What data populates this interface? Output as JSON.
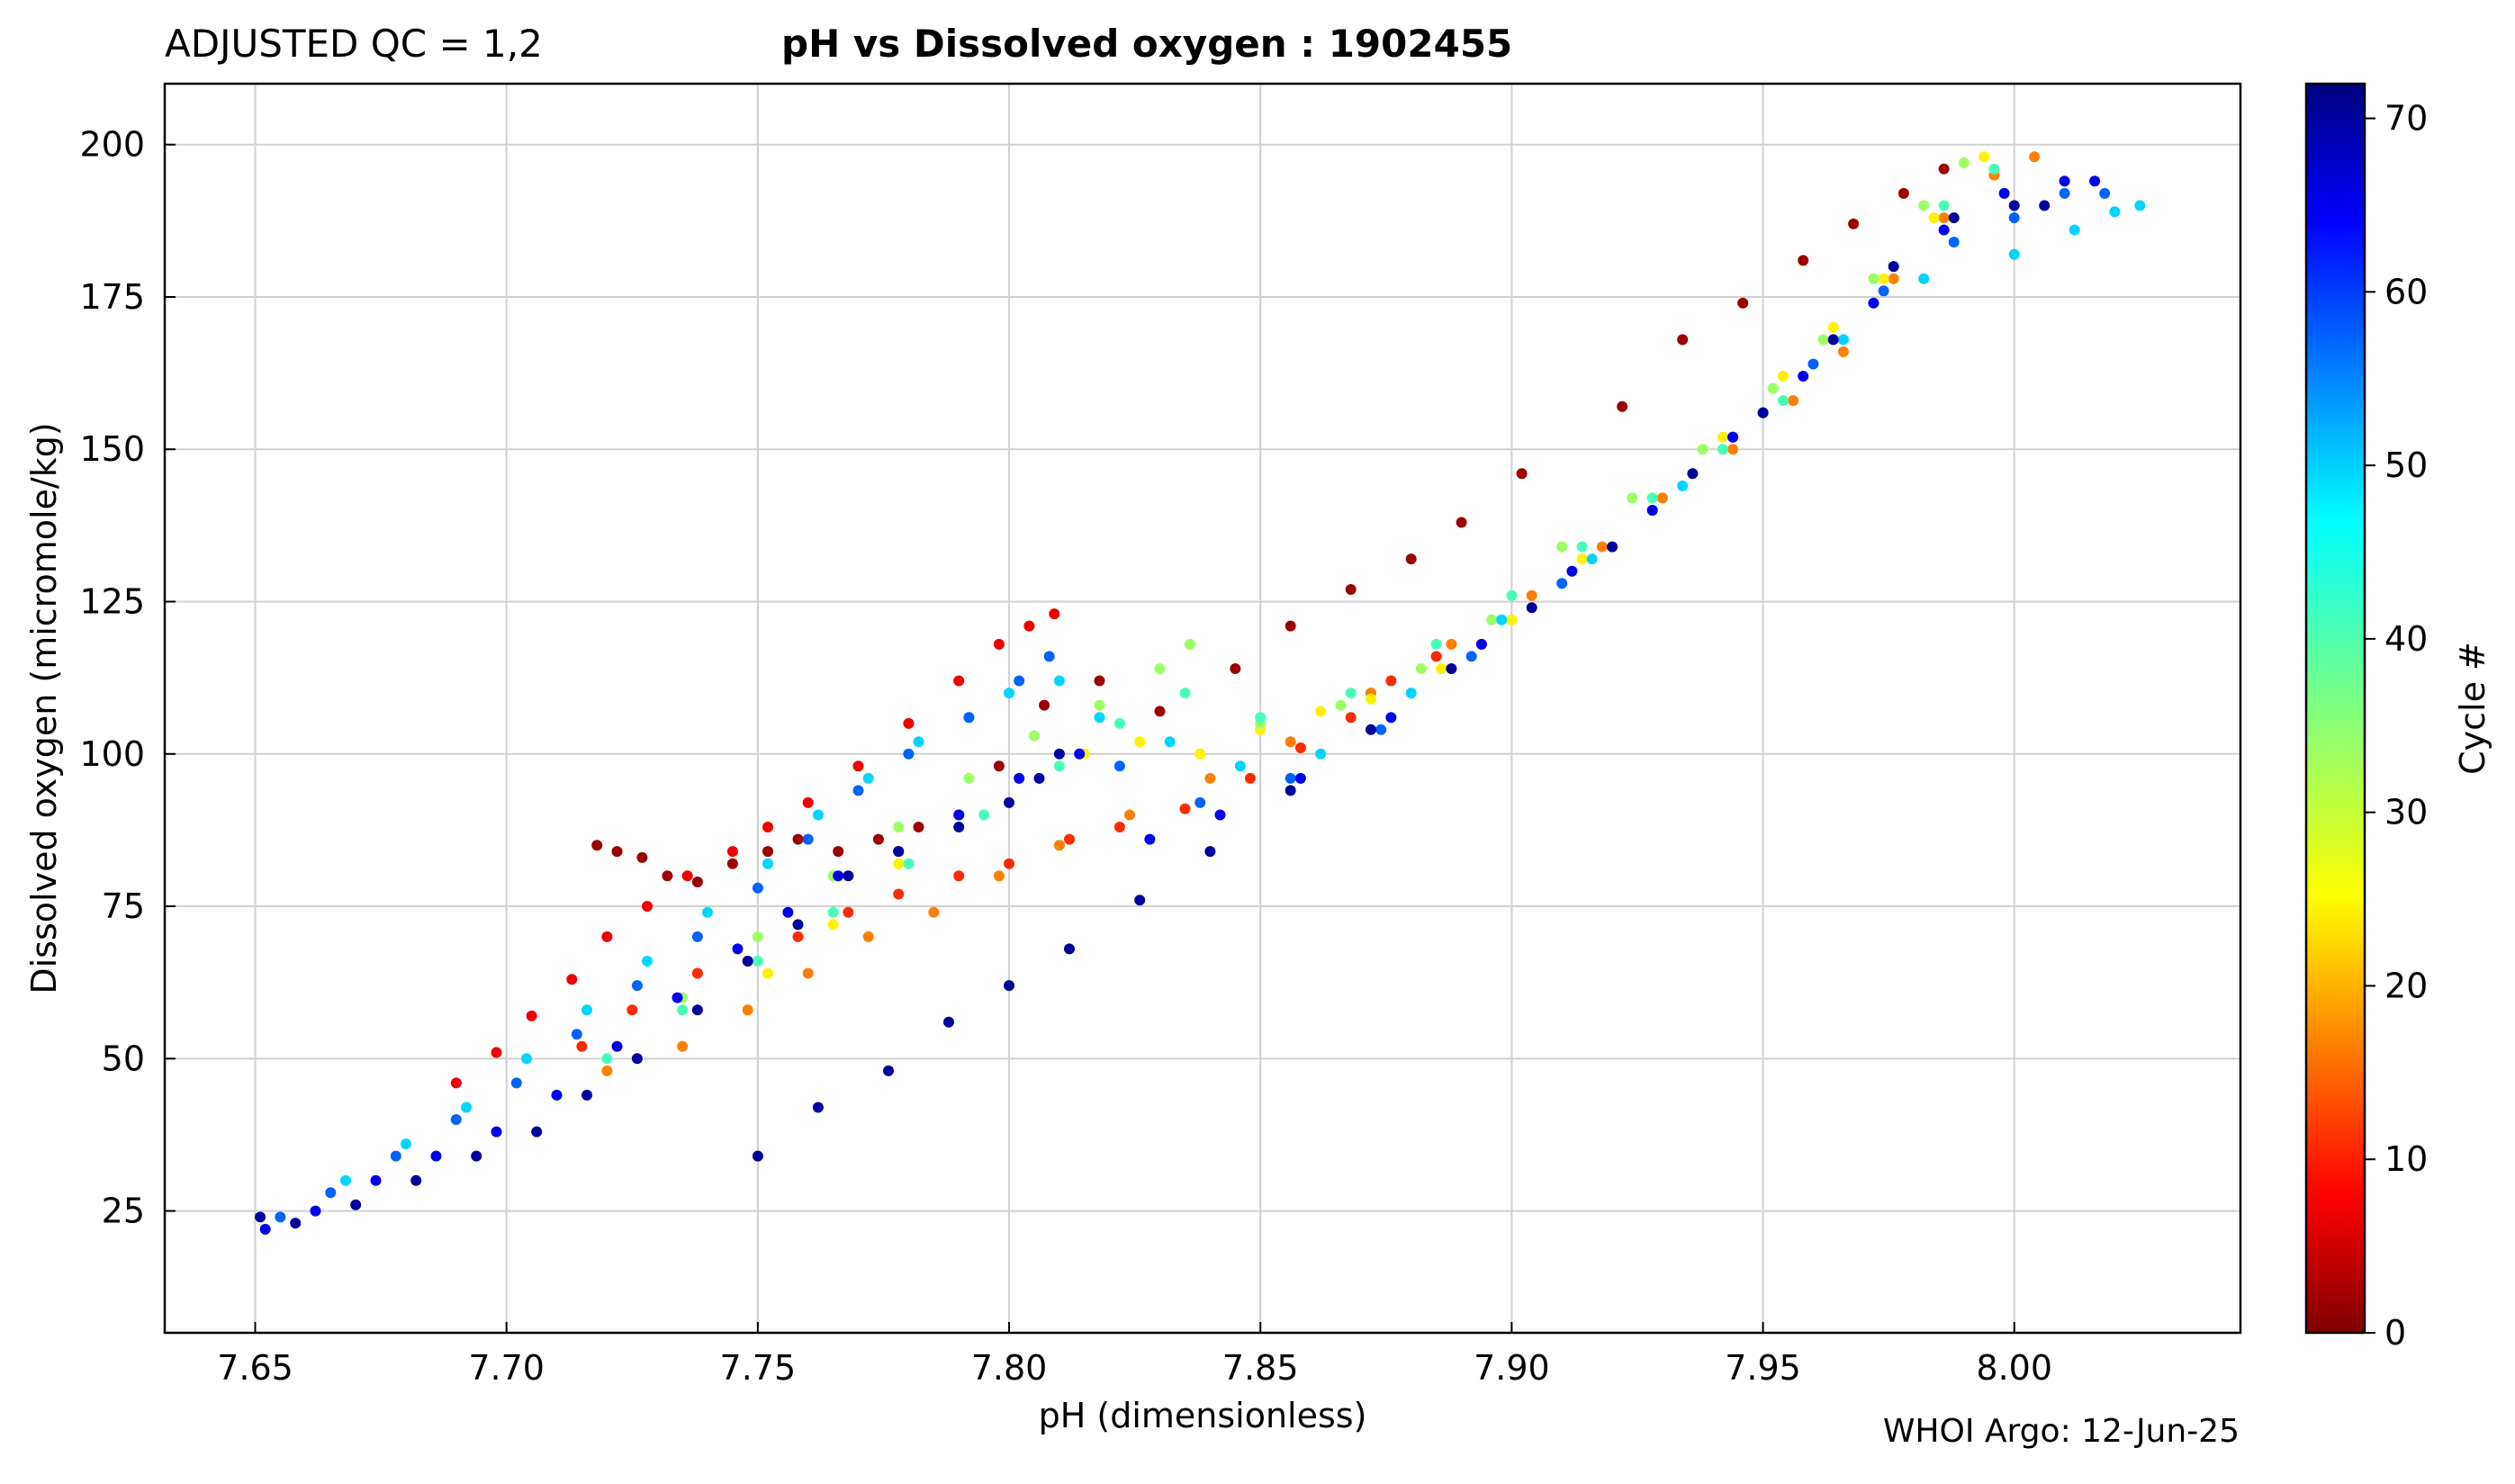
{
  "header": {
    "qc_label": "ADJUSTED QC = 1,2",
    "title": "pH vs Dissolved oxygen : 1902455"
  },
  "footer": {
    "credit": "WHOI Argo: 12-Jun-25"
  },
  "chart_data": {
    "type": "scatter",
    "title": "pH vs Dissolved oxygen : 1902455",
    "xlabel": "pH  (dimensionless)",
    "ylabel": "Dissolved oxygen  (micromole/kg)",
    "xlim": [
      7.632,
      8.045
    ],
    "ylim": [
      5,
      210
    ],
    "xticks": [
      7.65,
      7.7,
      7.75,
      7.8,
      7.85,
      7.9,
      7.95,
      8.0
    ],
    "xtick_labels": [
      "7.65",
      "7.70",
      "7.75",
      "7.80",
      "7.85",
      "7.90",
      "7.95",
      "8.00"
    ],
    "yticks": [
      25,
      50,
      75,
      100,
      125,
      150,
      175,
      200
    ],
    "ytick_labels": [
      "25",
      "50",
      "75",
      "100",
      "125",
      "150",
      "175",
      "200"
    ],
    "grid": true,
    "colorbar": {
      "label": "Cycle #",
      "colormap": "jet_reversed",
      "range": [
        0,
        72
      ],
      "ticks": [
        0,
        10,
        20,
        30,
        40,
        50,
        60,
        70
      ],
      "tick_labels": [
        "0",
        "10",
        "20",
        "30",
        "40",
        "50",
        "60",
        "70"
      ]
    },
    "color_by": "cycle",
    "series": [
      {
        "cycle": 2,
        "points": [
          [
            7.718,
            85
          ],
          [
            7.722,
            84
          ],
          [
            7.727,
            83
          ],
          [
            7.732,
            80
          ],
          [
            7.738,
            79
          ],
          [
            7.745,
            82
          ],
          [
            7.752,
            84
          ],
          [
            7.758,
            86
          ],
          [
            7.766,
            84
          ],
          [
            7.774,
            86
          ],
          [
            7.782,
            88
          ],
          [
            7.79,
            90
          ],
          [
            7.798,
            98
          ],
          [
            7.807,
            108
          ],
          [
            7.818,
            112
          ],
          [
            7.83,
            107
          ],
          [
            7.845,
            114
          ],
          [
            7.856,
            121
          ],
          [
            7.868,
            127
          ],
          [
            7.88,
            132
          ],
          [
            7.89,
            138
          ],
          [
            7.902,
            146
          ],
          [
            7.922,
            157
          ],
          [
            7.934,
            168
          ],
          [
            7.946,
            174
          ],
          [
            7.958,
            181
          ],
          [
            7.968,
            187
          ],
          [
            7.978,
            192
          ],
          [
            7.986,
            196
          ]
        ]
      },
      {
        "cycle": 8,
        "points": [
          [
            7.69,
            46
          ],
          [
            7.698,
            51
          ],
          [
            7.705,
            57
          ],
          [
            7.713,
            63
          ],
          [
            7.72,
            70
          ],
          [
            7.728,
            75
          ],
          [
            7.736,
            80
          ],
          [
            7.745,
            84
          ],
          [
            7.752,
            88
          ],
          [
            7.76,
            92
          ],
          [
            7.77,
            98
          ],
          [
            7.78,
            105
          ],
          [
            7.79,
            112
          ],
          [
            7.798,
            118
          ],
          [
            7.804,
            121
          ],
          [
            7.809,
            123
          ]
        ]
      },
      {
        "cycle": 12,
        "points": [
          [
            7.715,
            52
          ],
          [
            7.725,
            58
          ],
          [
            7.738,
            64
          ],
          [
            7.748,
            66
          ],
          [
            7.758,
            70
          ],
          [
            7.768,
            74
          ],
          [
            7.778,
            77
          ],
          [
            7.79,
            80
          ],
          [
            7.8,
            82
          ],
          [
            7.812,
            86
          ],
          [
            7.822,
            88
          ],
          [
            7.835,
            91
          ],
          [
            7.848,
            96
          ],
          [
            7.858,
            101
          ],
          [
            7.868,
            106
          ],
          [
            7.876,
            112
          ],
          [
            7.885,
            116
          ],
          [
            7.894,
            118
          ]
        ]
      },
      {
        "cycle": 18,
        "points": [
          [
            7.72,
            48
          ],
          [
            7.735,
            52
          ],
          [
            7.748,
            58
          ],
          [
            7.76,
            64
          ],
          [
            7.772,
            70
          ],
          [
            7.785,
            74
          ],
          [
            7.798,
            80
          ],
          [
            7.81,
            85
          ],
          [
            7.824,
            90
          ],
          [
            7.84,
            96
          ],
          [
            7.856,
            102
          ],
          [
            7.872,
            110
          ],
          [
            7.888,
            118
          ],
          [
            7.904,
            126
          ],
          [
            7.918,
            134
          ],
          [
            7.93,
            142
          ],
          [
            7.944,
            150
          ],
          [
            7.956,
            158
          ],
          [
            7.966,
            166
          ],
          [
            7.976,
            178
          ],
          [
            7.986,
            188
          ],
          [
            7.996,
            195
          ],
          [
            8.004,
            198
          ]
        ]
      },
      {
        "cycle": 26,
        "points": [
          [
            7.752,
            64
          ],
          [
            7.765,
            72
          ],
          [
            7.778,
            82
          ],
          [
            7.79,
            90
          ],
          [
            7.802,
            96
          ],
          [
            7.815,
            100
          ],
          [
            7.826,
            102
          ],
          [
            7.838,
            100
          ],
          [
            7.85,
            104
          ],
          [
            7.862,
            107
          ],
          [
            7.872,
            109
          ],
          [
            7.886,
            114
          ],
          [
            7.9,
            122
          ],
          [
            7.914,
            132
          ],
          [
            7.928,
            142
          ],
          [
            7.942,
            152
          ],
          [
            7.954,
            162
          ],
          [
            7.964,
            170
          ],
          [
            7.974,
            178
          ],
          [
            7.984,
            188
          ],
          [
            7.994,
            198
          ]
        ]
      },
      {
        "cycle": 34,
        "points": [
          [
            7.735,
            60
          ],
          [
            7.75,
            70
          ],
          [
            7.765,
            80
          ],
          [
            7.778,
            88
          ],
          [
            7.792,
            96
          ],
          [
            7.805,
            103
          ],
          [
            7.818,
            108
          ],
          [
            7.83,
            114
          ],
          [
            7.836,
            118
          ],
          [
            7.85,
            105
          ],
          [
            7.866,
            108
          ],
          [
            7.882,
            114
          ],
          [
            7.896,
            122
          ],
          [
            7.91,
            134
          ],
          [
            7.924,
            142
          ],
          [
            7.938,
            150
          ],
          [
            7.952,
            160
          ],
          [
            7.962,
            168
          ],
          [
            7.972,
            178
          ],
          [
            7.982,
            190
          ],
          [
            7.99,
            197
          ]
        ]
      },
      {
        "cycle": 40,
        "points": [
          [
            7.72,
            50
          ],
          [
            7.735,
            58
          ],
          [
            7.75,
            66
          ],
          [
            7.765,
            74
          ],
          [
            7.78,
            82
          ],
          [
            7.795,
            90
          ],
          [
            7.81,
            98
          ],
          [
            7.822,
            105
          ],
          [
            7.835,
            110
          ],
          [
            7.85,
            106
          ],
          [
            7.868,
            110
          ],
          [
            7.885,
            118
          ],
          [
            7.9,
            126
          ],
          [
            7.914,
            134
          ],
          [
            7.928,
            142
          ],
          [
            7.942,
            150
          ],
          [
            7.954,
            158
          ],
          [
            7.966,
            168
          ],
          [
            7.976,
            180
          ],
          [
            7.986,
            190
          ],
          [
            7.996,
            196
          ]
        ]
      },
      {
        "cycle": 48,
        "points": [
          [
            7.668,
            30
          ],
          [
            7.68,
            36
          ],
          [
            7.692,
            42
          ],
          [
            7.704,
            50
          ],
          [
            7.716,
            58
          ],
          [
            7.728,
            66
          ],
          [
            7.74,
            74
          ],
          [
            7.752,
            82
          ],
          [
            7.762,
            90
          ],
          [
            7.772,
            96
          ],
          [
            7.782,
            102
          ],
          [
            7.792,
            106
          ],
          [
            7.8,
            110
          ],
          [
            7.81,
            112
          ],
          [
            7.818,
            106
          ],
          [
            7.832,
            102
          ],
          [
            7.846,
            98
          ],
          [
            7.862,
            100
          ],
          [
            7.88,
            110
          ],
          [
            7.898,
            122
          ],
          [
            7.916,
            132
          ],
          [
            7.934,
            144
          ],
          [
            7.95,
            156
          ],
          [
            7.966,
            168
          ],
          [
            7.982,
            178
          ],
          [
            8.0,
            182
          ],
          [
            8.012,
            186
          ],
          [
            8.02,
            189
          ],
          [
            8.025,
            190
          ]
        ]
      },
      {
        "cycle": 56,
        "points": [
          [
            7.655,
            24
          ],
          [
            7.665,
            28
          ],
          [
            7.678,
            34
          ],
          [
            7.69,
            40
          ],
          [
            7.702,
            46
          ],
          [
            7.714,
            54
          ],
          [
            7.726,
            62
          ],
          [
            7.738,
            70
          ],
          [
            7.75,
            78
          ],
          [
            7.76,
            86
          ],
          [
            7.77,
            94
          ],
          [
            7.78,
            100
          ],
          [
            7.792,
            106
          ],
          [
            7.802,
            112
          ],
          [
            7.808,
            116
          ],
          [
            7.822,
            98
          ],
          [
            7.838,
            92
          ],
          [
            7.856,
            96
          ],
          [
            7.874,
            104
          ],
          [
            7.892,
            116
          ],
          [
            7.91,
            128
          ],
          [
            7.928,
            140
          ],
          [
            7.944,
            152
          ],
          [
            7.96,
            164
          ],
          [
            7.974,
            176
          ],
          [
            7.988,
            184
          ],
          [
            8.0,
            188
          ],
          [
            8.01,
            192
          ],
          [
            8.018,
            192
          ]
        ]
      },
      {
        "cycle": 64,
        "points": [
          [
            7.652,
            22
          ],
          [
            7.662,
            25
          ],
          [
            7.674,
            30
          ],
          [
            7.686,
            34
          ],
          [
            7.698,
            38
          ],
          [
            7.71,
            44
          ],
          [
            7.722,
            52
          ],
          [
            7.734,
            60
          ],
          [
            7.746,
            68
          ],
          [
            7.756,
            74
          ],
          [
            7.766,
            80
          ],
          [
            7.778,
            84
          ],
          [
            7.79,
            90
          ],
          [
            7.802,
            96
          ],
          [
            7.814,
            100
          ],
          [
            7.828,
            86
          ],
          [
            7.842,
            90
          ],
          [
            7.858,
            96
          ],
          [
            7.876,
            106
          ],
          [
            7.894,
            118
          ],
          [
            7.912,
            130
          ],
          [
            7.928,
            140
          ],
          [
            7.944,
            152
          ],
          [
            7.958,
            162
          ],
          [
            7.972,
            174
          ],
          [
            7.986,
            186
          ],
          [
            7.998,
            192
          ],
          [
            8.01,
            194
          ],
          [
            8.016,
            194
          ]
        ]
      },
      {
        "cycle": 70,
        "points": [
          [
            7.651,
            24
          ],
          [
            7.658,
            23
          ],
          [
            7.67,
            26
          ],
          [
            7.682,
            30
          ],
          [
            7.694,
            34
          ],
          [
            7.706,
            38
          ],
          [
            7.716,
            44
          ],
          [
            7.726,
            50
          ],
          [
            7.738,
            58
          ],
          [
            7.748,
            66
          ],
          [
            7.758,
            72
          ],
          [
            7.768,
            80
          ],
          [
            7.778,
            84
          ],
          [
            7.79,
            88
          ],
          [
            7.8,
            92
          ],
          [
            7.806,
            96
          ],
          [
            7.81,
            100
          ],
          [
            7.75,
            34
          ],
          [
            7.762,
            42
          ],
          [
            7.776,
            48
          ],
          [
            7.788,
            56
          ],
          [
            7.8,
            62
          ],
          [
            7.812,
            68
          ],
          [
            7.826,
            76
          ],
          [
            7.84,
            84
          ],
          [
            7.856,
            94
          ],
          [
            7.872,
            104
          ],
          [
            7.888,
            114
          ],
          [
            7.904,
            124
          ],
          [
            7.92,
            134
          ],
          [
            7.936,
            146
          ],
          [
            7.95,
            156
          ],
          [
            7.964,
            168
          ],
          [
            7.976,
            180
          ],
          [
            7.988,
            188
          ],
          [
            8.0,
            190
          ],
          [
            8.006,
            190
          ]
        ]
      }
    ]
  }
}
